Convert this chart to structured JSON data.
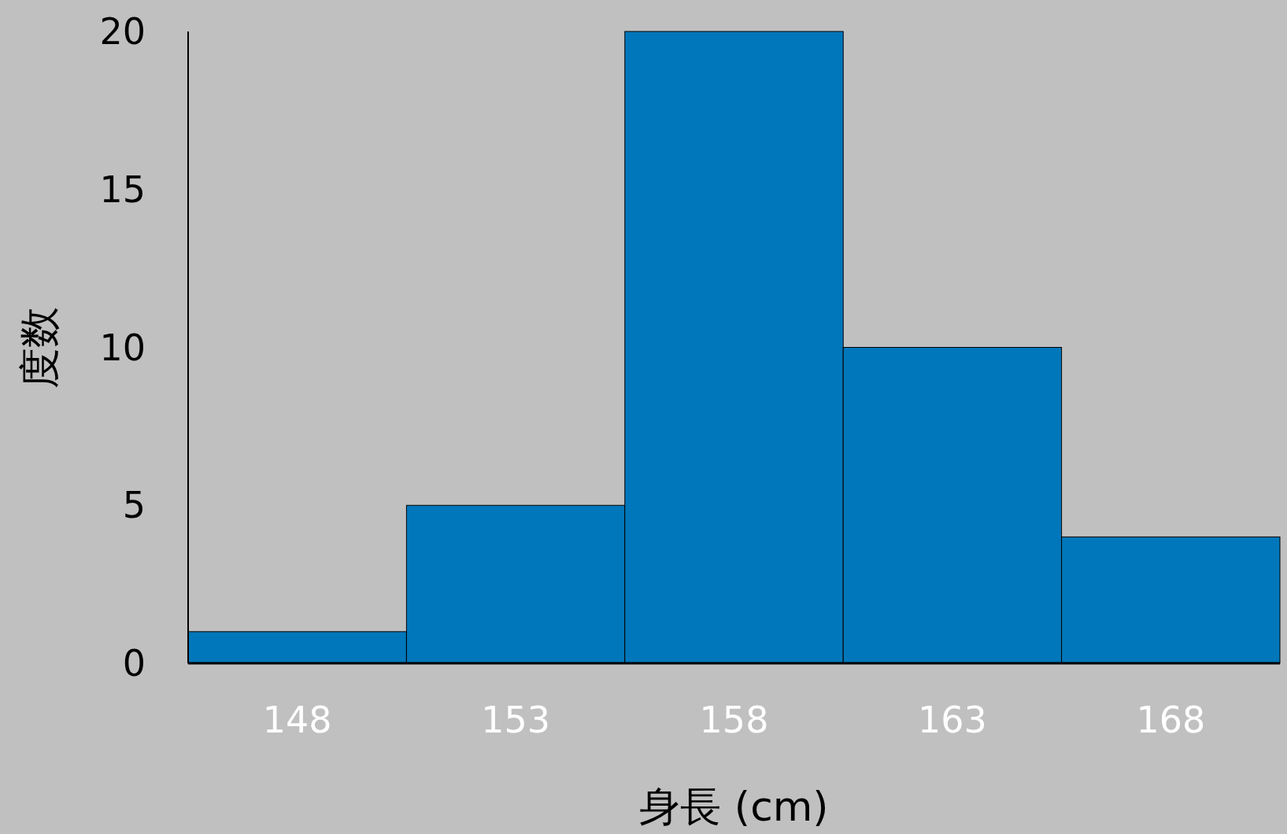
{
  "chart_data": {
    "type": "bar",
    "categories": [
      "148",
      "153",
      "158",
      "163",
      "168"
    ],
    "values": [
      1,
      5,
      20,
      10,
      4
    ],
    "color": "#0077bb",
    "ylim": [
      0,
      20
    ],
    "yticks": [
      0,
      5,
      10,
      15,
      20
    ],
    "xlabel": "身長 (cm)",
    "ylabel": "度数"
  }
}
